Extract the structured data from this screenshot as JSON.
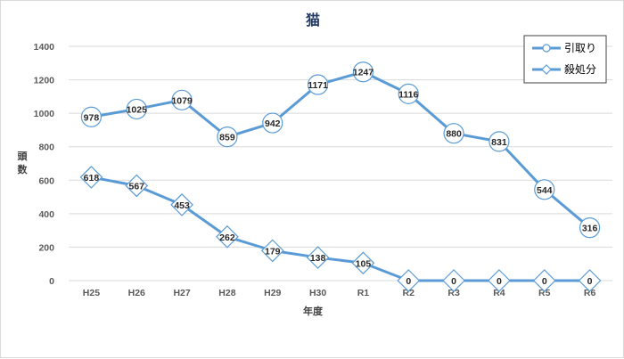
{
  "chart_data": {
    "type": "line",
    "title": "猫",
    "xlabel": "年度",
    "ylabel": "頭数",
    "ylim": [
      0,
      1400
    ],
    "yticks": [
      0,
      200,
      400,
      600,
      800,
      1000,
      1200,
      1400
    ],
    "ytick_labels": [
      "0",
      "200",
      "400",
      "600",
      "800",
      "1000",
      "1200",
      "1400"
    ],
    "categories": [
      "H25",
      "H26",
      "H27",
      "H28",
      "H29",
      "H30",
      "R1",
      "R2",
      "R3",
      "R4",
      "R5",
      "R6"
    ],
    "grid": true,
    "legend_position": "top-right",
    "series": [
      {
        "name": "引取り",
        "marker": "circle",
        "color": "#5b9bd5",
        "values": [
          978,
          1025,
          1079,
          859,
          942,
          1171,
          1247,
          1116,
          880,
          831,
          544,
          316
        ]
      },
      {
        "name": "殺処分",
        "marker": "diamond",
        "color": "#5b9bd5",
        "values": [
          618,
          567,
          453,
          262,
          179,
          138,
          105,
          0,
          0,
          0,
          0,
          0
        ]
      }
    ]
  }
}
